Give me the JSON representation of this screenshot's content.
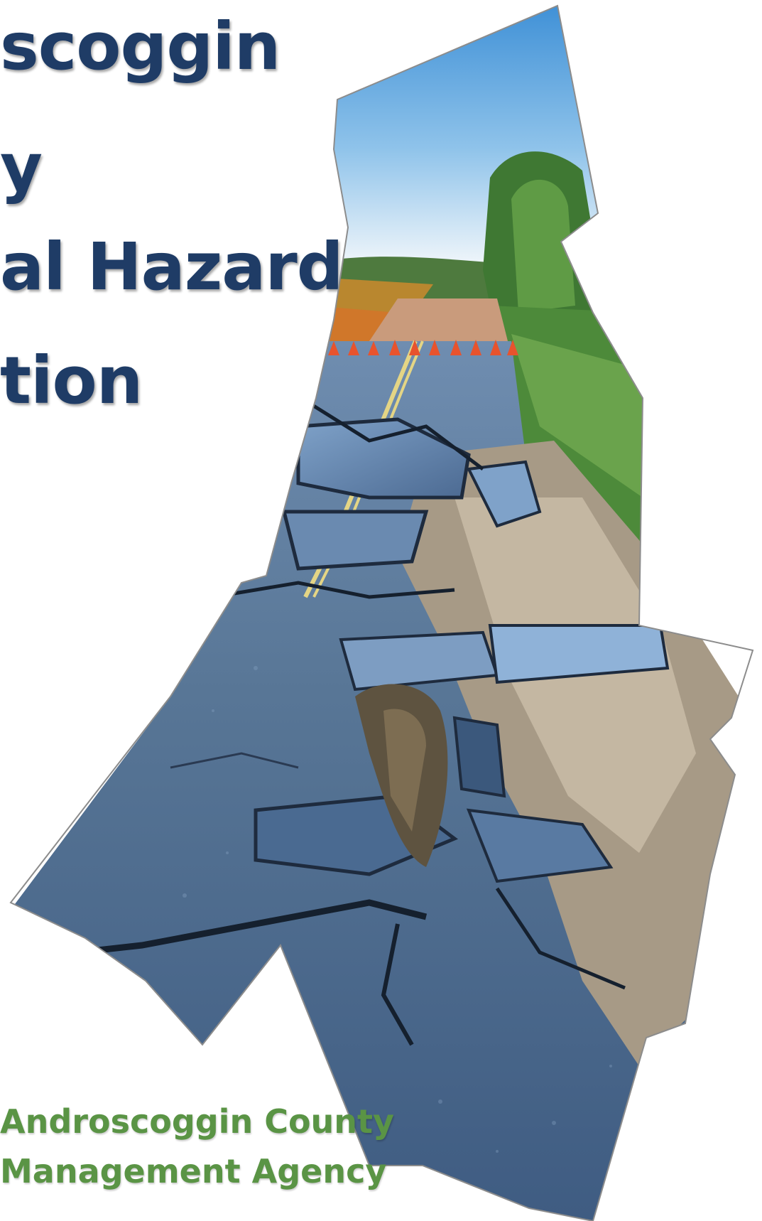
{
  "cover": {
    "title_lines": [
      "scoggin",
      "y",
      "al Hazard",
      "tion"
    ],
    "subtitle_lines": [
      "Androscoggin County",
      "Management Agency"
    ]
  },
  "colors": {
    "title": "#1f3c66",
    "subtitle": "#5a9445",
    "sky_top": "#3d8fd6",
    "sky_bottom": "#f4f8fb",
    "asphalt": "#546e8c",
    "cone": "#e8532d",
    "grass": "#4d8a3a"
  }
}
